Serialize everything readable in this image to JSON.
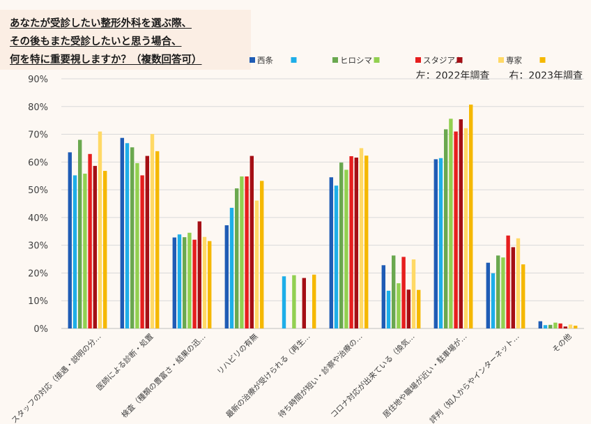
{
  "title_lines": [
    "あなたが受診したい整形外科を選ぶ際、",
    "その後もまた受診したいと思う場合、",
    "何を特に重要視しますか？（複数回答可）"
  ],
  "subtitle": "左：2022年調査　　右：2023年調査",
  "colors": {
    "background": "#fdf8f3",
    "title_bg": "#fbeee4",
    "gridline": "#d9d9d9",
    "axis_text": "#404040"
  },
  "chart_data": {
    "type": "bar",
    "ylim": [
      0,
      90
    ],
    "yticks": [
      "0%",
      "10%",
      "20%",
      "30%",
      "40%",
      "50%",
      "60%",
      "70%",
      "80%",
      "90%"
    ],
    "grid": true,
    "legend_position": "top-right",
    "categories": [
      "スタッフの対応（接遇・説明の分…",
      "医師による診断・処置",
      "検査（種類の豊富さ・結果の迅…",
      "リハビリの有無",
      "最新の治療が受けられる（再生…",
      "待ち時間が短い・診察や治療の…",
      "コロナ対応が出来ている（換気…",
      "居住地や職場が近い・駐車場が…",
      "評判（知人からやインターネット…",
      "その他"
    ],
    "series": [
      {
        "name": "西条",
        "color": "#1f5cb5",
        "values": [
          63.5,
          68.7,
          32.8,
          37.2,
          null,
          54.5,
          22.8,
          61.0,
          23.7,
          2.6
        ]
      },
      {
        "name": "",
        "color": "#1eaee8",
        "values": [
          55.2,
          66.8,
          33.9,
          43.5,
          18.8,
          51.5,
          13.6,
          61.4,
          19.9,
          1.2
        ]
      },
      {
        "name": "ヒロシマ",
        "color": "#6aa84f",
        "values": [
          68.0,
          65.3,
          32.9,
          50.5,
          null,
          59.8,
          26.3,
          71.8,
          26.3,
          1.3
        ]
      },
      {
        "name": "",
        "color": "#92d050",
        "values": [
          55.8,
          59.6,
          34.5,
          54.8,
          19.2,
          57.2,
          16.3,
          75.6,
          25.6,
          2.1
        ]
      },
      {
        "name": "スタジアム",
        "color": "#e61e1e",
        "values": [
          62.9,
          55.2,
          32.0,
          54.8,
          null,
          62.1,
          25.8,
          71.0,
          33.5,
          1.8
        ]
      },
      {
        "name": "",
        "color": "#a50f15",
        "values": [
          58.6,
          62.2,
          38.6,
          62.2,
          18.2,
          61.6,
          14.0,
          75.4,
          29.3,
          0.7
        ]
      },
      {
        "name": "専家",
        "color": "#ffd966",
        "values": [
          71.0,
          70.1,
          33.0,
          46.1,
          null,
          65.0,
          24.9,
          72.2,
          32.5,
          1.4
        ]
      },
      {
        "name": "",
        "color": "#f5b800",
        "values": [
          56.8,
          63.9,
          31.5,
          53.2,
          19.4,
          62.3,
          13.9,
          80.7,
          23.1,
          1.0
        ]
      }
    ]
  }
}
